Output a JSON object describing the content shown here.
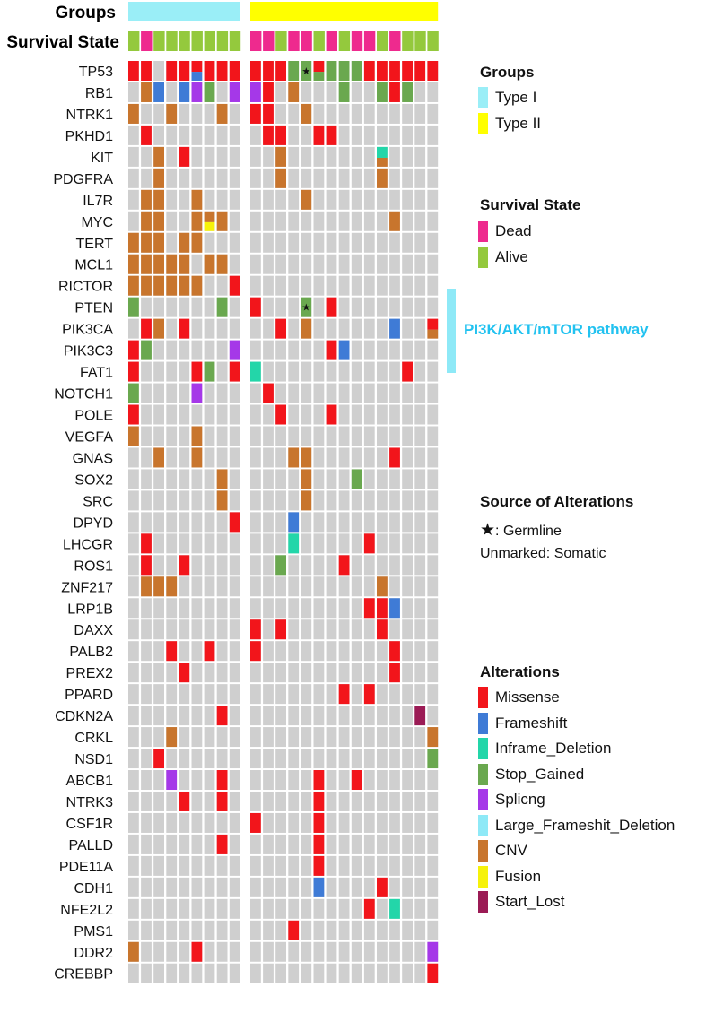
{
  "header": {
    "groups_label": "Groups",
    "survival_label": "Survival State"
  },
  "colors": {
    "missense": "#f2151b",
    "frameshift": "#3f7bd6",
    "inframe_deletion": "#23d6a9",
    "stop_gained": "#6aa84f",
    "splicing": "#a538e8",
    "large_deletion": "#8ee9f7",
    "cnv": "#c8752d",
    "fusion": "#f6f20a",
    "start_lost": "#9b1b55",
    "empty": "#cfcfcf",
    "type1": "#9aeef7",
    "type2": "#ffff00",
    "dead": "#ee2a8e",
    "alive": "#94c93d",
    "pathway": "#22c2f0"
  },
  "legend": {
    "groups": {
      "title": "Groups",
      "items": [
        {
          "label": "Type I",
          "color_key": "type1"
        },
        {
          "label": "Type II",
          "color_key": "type2"
        }
      ]
    },
    "survival": {
      "title": "Survival State",
      "items": [
        {
          "label": "Dead",
          "color_key": "dead"
        },
        {
          "label": "Alive",
          "color_key": "alive"
        }
      ]
    },
    "source": {
      "title": "Source of Alterations",
      "germline": ": Germline",
      "star": "★",
      "somatic": "Unmarked: Somatic"
    },
    "alterations": {
      "title": "Alterations",
      "items": [
        {
          "label": "Missense",
          "color_key": "missense"
        },
        {
          "label": "Frameshift",
          "color_key": "frameshift"
        },
        {
          "label": "Inframe_Deletion",
          "color_key": "inframe_deletion"
        },
        {
          "label": "Stop_Gained",
          "color_key": "stop_gained"
        },
        {
          "label": "Splicng",
          "color_key": "splicing"
        },
        {
          "label": "Large_Frameshit_Deletion",
          "color_key": "large_deletion"
        },
        {
          "label": "CNV",
          "color_key": "cnv"
        },
        {
          "label": "Fusion",
          "color_key": "fusion"
        },
        {
          "label": "Start_Lost",
          "color_key": "start_lost"
        }
      ]
    },
    "pathway": {
      "label": "PI3K/AKT/mTOR pathway"
    }
  },
  "chart_data": {
    "type": "heatmap",
    "title": "",
    "samples_type1": 9,
    "samples_type2": 15,
    "survival": [
      "A",
      "D",
      "A",
      "A",
      "A",
      "A",
      "A",
      "A",
      "A",
      "D",
      "D",
      "A",
      "D",
      "D",
      "A",
      "D",
      "A",
      "D",
      "D",
      "A",
      "D",
      "A",
      "A",
      "A"
    ],
    "code_key": {
      "M": "missense",
      "F": "frameshift",
      "I": "inframe_deletion",
      "S": "stop_gained",
      "P": "splicing",
      "C": "cnv",
      "U": "fusion",
      "L": "start_lost",
      "*": "germline"
    },
    "genes": [
      "TP53",
      "RB1",
      "NTRK1",
      "PKHD1",
      "KIT",
      "PDGFRA",
      "IL7R",
      "MYC",
      "TERT",
      "MCL1",
      "RICTOR",
      "PTEN",
      "PIK3CA",
      "PIK3C3",
      "FAT1",
      "NOTCH1",
      "POLE",
      "VEGFA",
      "GNAS",
      "SOX2",
      "SRC",
      "DPYD",
      "LHCGR",
      "ROS1",
      "ZNF217",
      "LRP1B",
      "DAXX",
      "PALB2",
      "PREX2",
      "PPARD",
      "CDKN2A",
      "CRKL",
      "NSD1",
      "ABCB1",
      "NTRK3",
      "CSF1R",
      "PALLD",
      "PDE11A",
      "CDH1",
      "NFE2L2",
      "PMS1",
      "DDR2",
      "CREBBP"
    ],
    "pathway_genes": [
      "RICTOR",
      "PTEN",
      "PIK3CA",
      "PIK3C3"
    ],
    "alterations": [
      {
        "gene": "TP53",
        "cells": [
          [
            0,
            "M"
          ],
          [
            1,
            "M"
          ],
          [
            3,
            "M"
          ],
          [
            4,
            "M"
          ],
          [
            5,
            "M/F"
          ],
          [
            6,
            "M"
          ],
          [
            7,
            "M"
          ],
          [
            8,
            "M"
          ],
          [
            9,
            "M"
          ],
          [
            10,
            "M"
          ],
          [
            11,
            "M"
          ],
          [
            12,
            "S"
          ],
          [
            13,
            "S*"
          ],
          [
            14,
            "M/S"
          ],
          [
            15,
            "S"
          ],
          [
            16,
            "S"
          ],
          [
            17,
            "S"
          ],
          [
            18,
            "M"
          ],
          [
            19,
            "M"
          ],
          [
            20,
            "M"
          ],
          [
            21,
            "M"
          ],
          [
            22,
            "M"
          ],
          [
            23,
            "M"
          ]
        ]
      },
      {
        "gene": "RB1",
        "cells": [
          [
            1,
            "C"
          ],
          [
            2,
            "F"
          ],
          [
            4,
            "F"
          ],
          [
            5,
            "P"
          ],
          [
            6,
            "S"
          ],
          [
            8,
            "P"
          ],
          [
            9,
            "P"
          ],
          [
            10,
            "M"
          ],
          [
            12,
            "C"
          ],
          [
            16,
            "S"
          ],
          [
            19,
            "S"
          ],
          [
            20,
            "M"
          ],
          [
            21,
            "S"
          ]
        ]
      },
      {
        "gene": "NTRK1",
        "cells": [
          [
            0,
            "C"
          ],
          [
            3,
            "C"
          ],
          [
            7,
            "C"
          ],
          [
            9,
            "M"
          ],
          [
            10,
            "M"
          ],
          [
            13,
            "C"
          ]
        ]
      },
      {
        "gene": "PKHD1",
        "cells": [
          [
            1,
            "M"
          ],
          [
            10,
            "M"
          ],
          [
            11,
            "M"
          ],
          [
            14,
            "M"
          ],
          [
            15,
            "M"
          ]
        ]
      },
      {
        "gene": "KIT",
        "cells": [
          [
            2,
            "C"
          ],
          [
            4,
            "M"
          ],
          [
            11,
            "C"
          ],
          [
            19,
            "I/C"
          ]
        ]
      },
      {
        "gene": "PDGFRA",
        "cells": [
          [
            2,
            "C"
          ],
          [
            11,
            "C"
          ],
          [
            19,
            "C"
          ]
        ]
      },
      {
        "gene": "IL7R",
        "cells": [
          [
            1,
            "C"
          ],
          [
            2,
            "C"
          ],
          [
            5,
            "C"
          ],
          [
            13,
            "C"
          ]
        ]
      },
      {
        "gene": "MYC",
        "cells": [
          [
            1,
            "C"
          ],
          [
            2,
            "C"
          ],
          [
            5,
            "C"
          ],
          [
            6,
            "C/U"
          ],
          [
            7,
            "C"
          ],
          [
            20,
            "C"
          ]
        ]
      },
      {
        "gene": "TERT",
        "cells": [
          [
            0,
            "C"
          ],
          [
            1,
            "C"
          ],
          [
            2,
            "C"
          ],
          [
            4,
            "C"
          ],
          [
            5,
            "C"
          ]
        ]
      },
      {
        "gene": "MCL1",
        "cells": [
          [
            0,
            "C"
          ],
          [
            1,
            "C"
          ],
          [
            2,
            "C"
          ],
          [
            3,
            "C"
          ],
          [
            4,
            "C"
          ],
          [
            6,
            "C"
          ],
          [
            7,
            "C"
          ]
        ]
      },
      {
        "gene": "RICTOR",
        "cells": [
          [
            0,
            "C"
          ],
          [
            1,
            "C"
          ],
          [
            2,
            "C"
          ],
          [
            3,
            "C"
          ],
          [
            4,
            "C"
          ],
          [
            5,
            "C"
          ],
          [
            8,
            "M"
          ]
        ]
      },
      {
        "gene": "PTEN",
        "cells": [
          [
            0,
            "S"
          ],
          [
            7,
            "S"
          ],
          [
            9,
            "M"
          ],
          [
            13,
            "S*"
          ],
          [
            15,
            "M"
          ]
        ]
      },
      {
        "gene": "PIK3CA",
        "cells": [
          [
            1,
            "M"
          ],
          [
            2,
            "C"
          ],
          [
            4,
            "M"
          ],
          [
            11,
            "M"
          ],
          [
            13,
            "C"
          ],
          [
            20,
            "F"
          ],
          [
            23,
            "M/C"
          ]
        ]
      },
      {
        "gene": "PIK3C3",
        "cells": [
          [
            0,
            "M"
          ],
          [
            1,
            "S"
          ],
          [
            8,
            "P"
          ],
          [
            15,
            "M"
          ],
          [
            16,
            "F"
          ]
        ]
      },
      {
        "gene": "FAT1",
        "cells": [
          [
            0,
            "M"
          ],
          [
            5,
            "M"
          ],
          [
            6,
            "S"
          ],
          [
            8,
            "M"
          ],
          [
            9,
            "I"
          ],
          [
            21,
            "M"
          ]
        ]
      },
      {
        "gene": "NOTCH1",
        "cells": [
          [
            0,
            "S"
          ],
          [
            5,
            "P"
          ],
          [
            10,
            "M"
          ]
        ]
      },
      {
        "gene": "POLE",
        "cells": [
          [
            0,
            "M"
          ],
          [
            11,
            "M"
          ],
          [
            15,
            "M"
          ]
        ]
      },
      {
        "gene": "VEGFA",
        "cells": [
          [
            0,
            "C"
          ],
          [
            5,
            "C"
          ]
        ]
      },
      {
        "gene": "GNAS",
        "cells": [
          [
            2,
            "C"
          ],
          [
            5,
            "C"
          ],
          [
            12,
            "C"
          ],
          [
            13,
            "C"
          ],
          [
            20,
            "M"
          ]
        ]
      },
      {
        "gene": "SOX2",
        "cells": [
          [
            7,
            "C"
          ],
          [
            13,
            "C"
          ],
          [
            17,
            "S"
          ]
        ]
      },
      {
        "gene": "SRC",
        "cells": [
          [
            7,
            "C"
          ],
          [
            13,
            "C"
          ]
        ]
      },
      {
        "gene": "DPYD",
        "cells": [
          [
            8,
            "M"
          ],
          [
            12,
            "F"
          ]
        ]
      },
      {
        "gene": "LHCGR",
        "cells": [
          [
            1,
            "M"
          ],
          [
            12,
            "I"
          ],
          [
            18,
            "M"
          ]
        ]
      },
      {
        "gene": "ROS1",
        "cells": [
          [
            1,
            "M"
          ],
          [
            4,
            "M"
          ],
          [
            11,
            "S"
          ],
          [
            16,
            "M"
          ]
        ]
      },
      {
        "gene": "ZNF217",
        "cells": [
          [
            1,
            "C"
          ],
          [
            2,
            "C"
          ],
          [
            3,
            "C"
          ],
          [
            19,
            "C"
          ]
        ]
      },
      {
        "gene": "LRP1B",
        "cells": [
          [
            18,
            "M"
          ],
          [
            19,
            "M"
          ],
          [
            20,
            "F"
          ]
        ]
      },
      {
        "gene": "DAXX",
        "cells": [
          [
            9,
            "M"
          ],
          [
            11,
            "M"
          ],
          [
            19,
            "M"
          ]
        ]
      },
      {
        "gene": "PALB2",
        "cells": [
          [
            3,
            "M"
          ],
          [
            6,
            "M"
          ],
          [
            9,
            "M"
          ],
          [
            20,
            "M"
          ]
        ]
      },
      {
        "gene": "PREX2",
        "cells": [
          [
            4,
            "M"
          ],
          [
            20,
            "M"
          ]
        ]
      },
      {
        "gene": "PPARD",
        "cells": [
          [
            16,
            "M"
          ],
          [
            18,
            "M"
          ]
        ]
      },
      {
        "gene": "CDKN2A",
        "cells": [
          [
            7,
            "M"
          ],
          [
            22,
            "L"
          ]
        ]
      },
      {
        "gene": "CRKL",
        "cells": [
          [
            3,
            "C"
          ],
          [
            23,
            "C"
          ]
        ]
      },
      {
        "gene": "NSD1",
        "cells": [
          [
            2,
            "M"
          ],
          [
            23,
            "S"
          ]
        ]
      },
      {
        "gene": "ABCB1",
        "cells": [
          [
            3,
            "P"
          ],
          [
            7,
            "M"
          ],
          [
            14,
            "M"
          ],
          [
            17,
            "M"
          ]
        ]
      },
      {
        "gene": "NTRK3",
        "cells": [
          [
            4,
            "M"
          ],
          [
            7,
            "M"
          ],
          [
            14,
            "M"
          ]
        ]
      },
      {
        "gene": "CSF1R",
        "cells": [
          [
            9,
            "M"
          ],
          [
            14,
            "M"
          ]
        ]
      },
      {
        "gene": "PALLD",
        "cells": [
          [
            7,
            "M"
          ],
          [
            14,
            "M"
          ]
        ]
      },
      {
        "gene": "PDE11A",
        "cells": [
          [
            14,
            "M"
          ]
        ]
      },
      {
        "gene": "CDH1",
        "cells": [
          [
            14,
            "F"
          ],
          [
            19,
            "M"
          ]
        ]
      },
      {
        "gene": "NFE2L2",
        "cells": [
          [
            18,
            "M"
          ],
          [
            20,
            "I"
          ]
        ]
      },
      {
        "gene": "PMS1",
        "cells": [
          [
            12,
            "M"
          ]
        ]
      },
      {
        "gene": "DDR2",
        "cells": [
          [
            0,
            "C"
          ],
          [
            5,
            "M"
          ],
          [
            23,
            "P"
          ]
        ]
      },
      {
        "gene": "CREBBP",
        "cells": [
          [
            23,
            "M"
          ]
        ]
      }
    ]
  }
}
